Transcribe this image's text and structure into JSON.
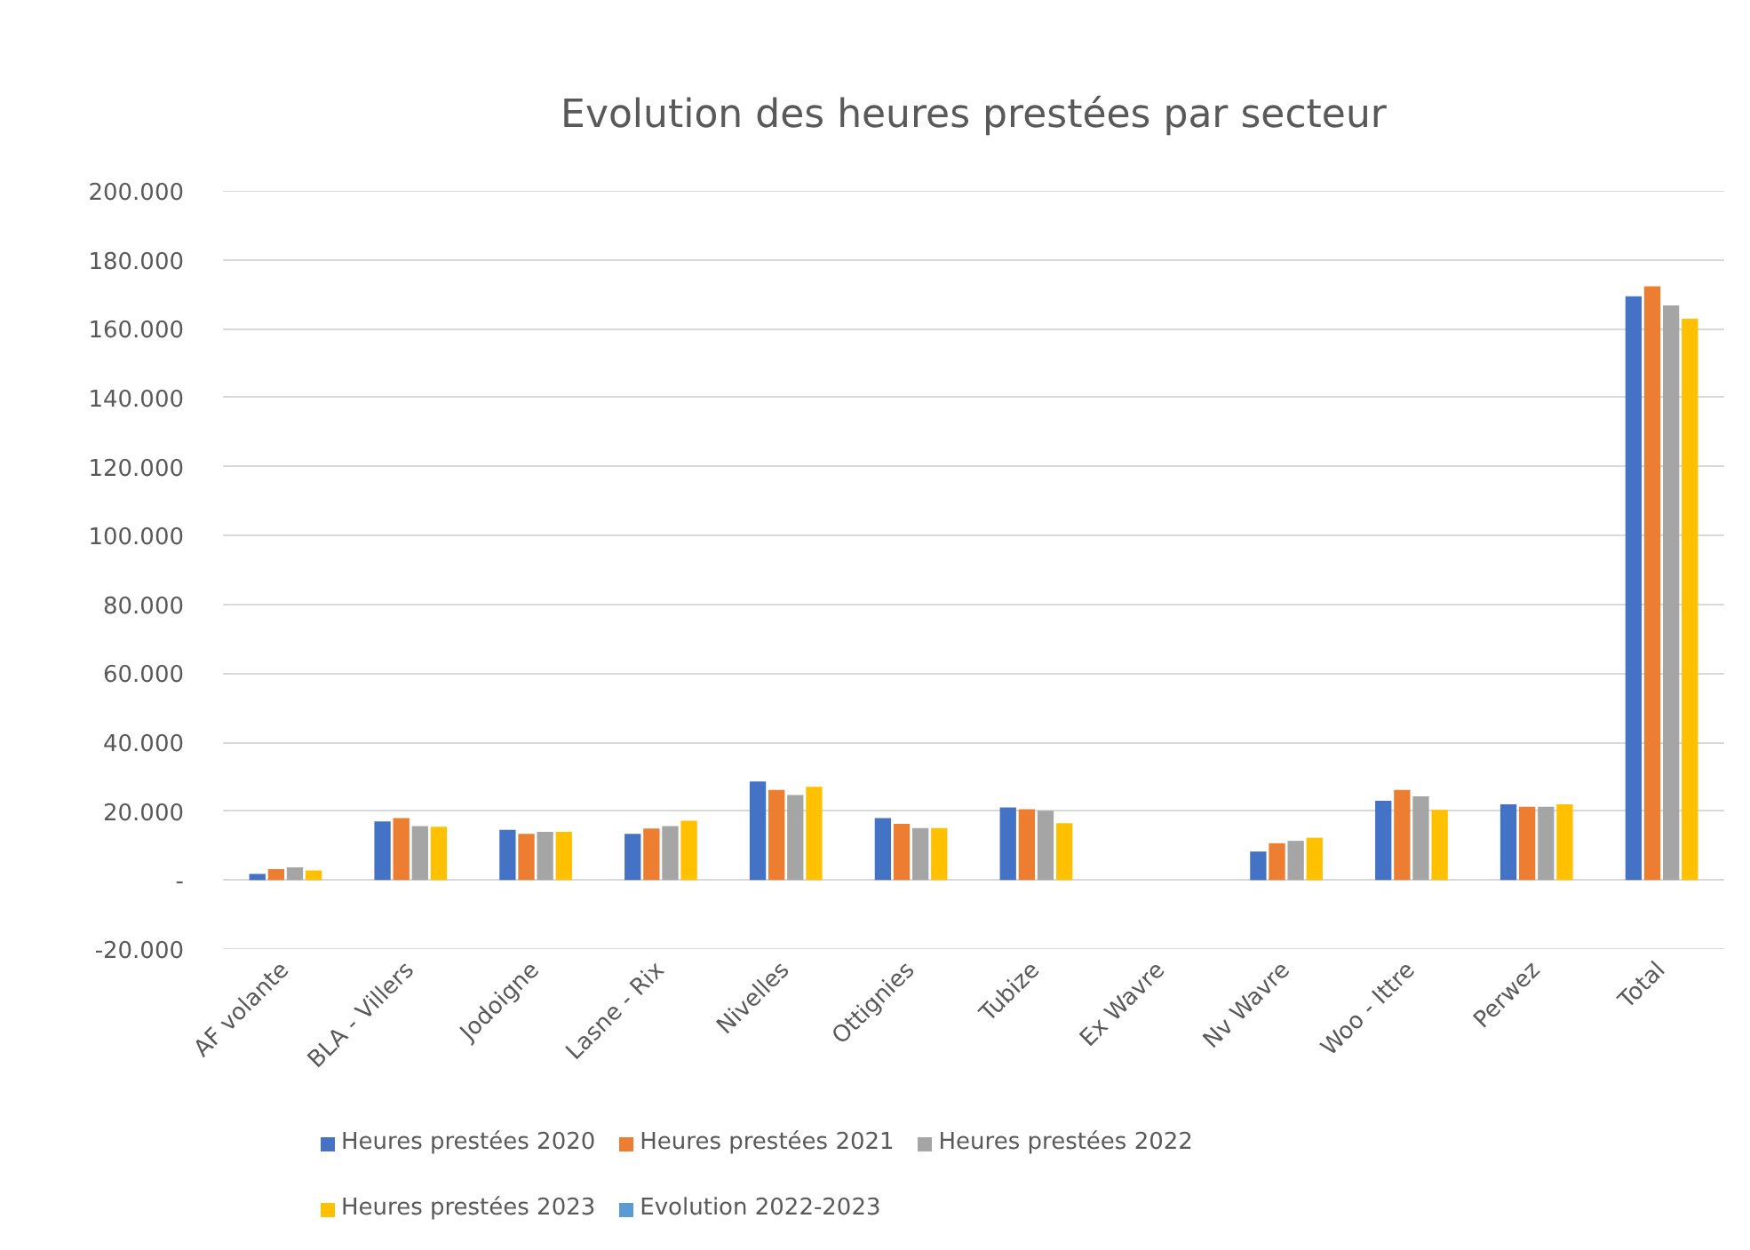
{
  "chart_data": {
    "type": "bar",
    "title": "Evolution des heures prestées par secteur",
    "categories": [
      "AF volante",
      "BLA - Villers",
      "Jodoigne",
      "Lasne - Rix",
      "Nivelles",
      "Ottignies",
      "Tubize",
      "Ex Wavre",
      "Nv Wavre",
      "Woo - Ittre",
      "Perwez",
      "Total"
    ],
    "series": [
      {
        "name": "Heures prestées 2020",
        "color": "#4472c4",
        "values": [
          1800,
          17000,
          14600,
          13400,
          28600,
          18000,
          21100,
          null,
          8300,
          23000,
          22000,
          169400
        ]
      },
      {
        "name": "Heures prestées 2021",
        "color": "#ed7d31",
        "values": [
          3200,
          18000,
          13400,
          15000,
          26200,
          16300,
          20600,
          null,
          10700,
          26200,
          21300,
          172300
        ]
      },
      {
        "name": "Heures prestées 2022",
        "color": "#a5a5a5",
        "values": [
          3700,
          15700,
          14000,
          15700,
          24700,
          15100,
          20100,
          null,
          11400,
          24300,
          21300,
          166800
        ]
      },
      {
        "name": "Heures prestées 2023",
        "color": "#ffc000",
        "values": [
          2800,
          15500,
          14000,
          17200,
          27100,
          15100,
          16500,
          null,
          12300,
          20400,
          22000,
          162900
        ]
      },
      {
        "name": "Evolution 2022-2023",
        "color": "#5b9bd5",
        "values": [
          null,
          null,
          null,
          null,
          null,
          null,
          null,
          null,
          null,
          null,
          null,
          null
        ]
      }
    ],
    "ylim": [
      -20000,
      200000
    ],
    "yticks": [
      {
        "value": -20000,
        "label": "-20.000"
      },
      {
        "value": 0,
        "label": "-"
      },
      {
        "value": 20000,
        "label": "20.000"
      },
      {
        "value": 40000,
        "label": "40.000"
      },
      {
        "value": 60000,
        "label": "60.000"
      },
      {
        "value": 80000,
        "label": "80.000"
      },
      {
        "value": 100000,
        "label": "100.000"
      },
      {
        "value": 120000,
        "label": "120.000"
      },
      {
        "value": 140000,
        "label": "140.000"
      },
      {
        "value": 160000,
        "label": "160.000"
      },
      {
        "value": 180000,
        "label": "180.000"
      },
      {
        "value": 200000,
        "label": "200.000"
      }
    ],
    "grid": "y",
    "legend": "bottom"
  }
}
